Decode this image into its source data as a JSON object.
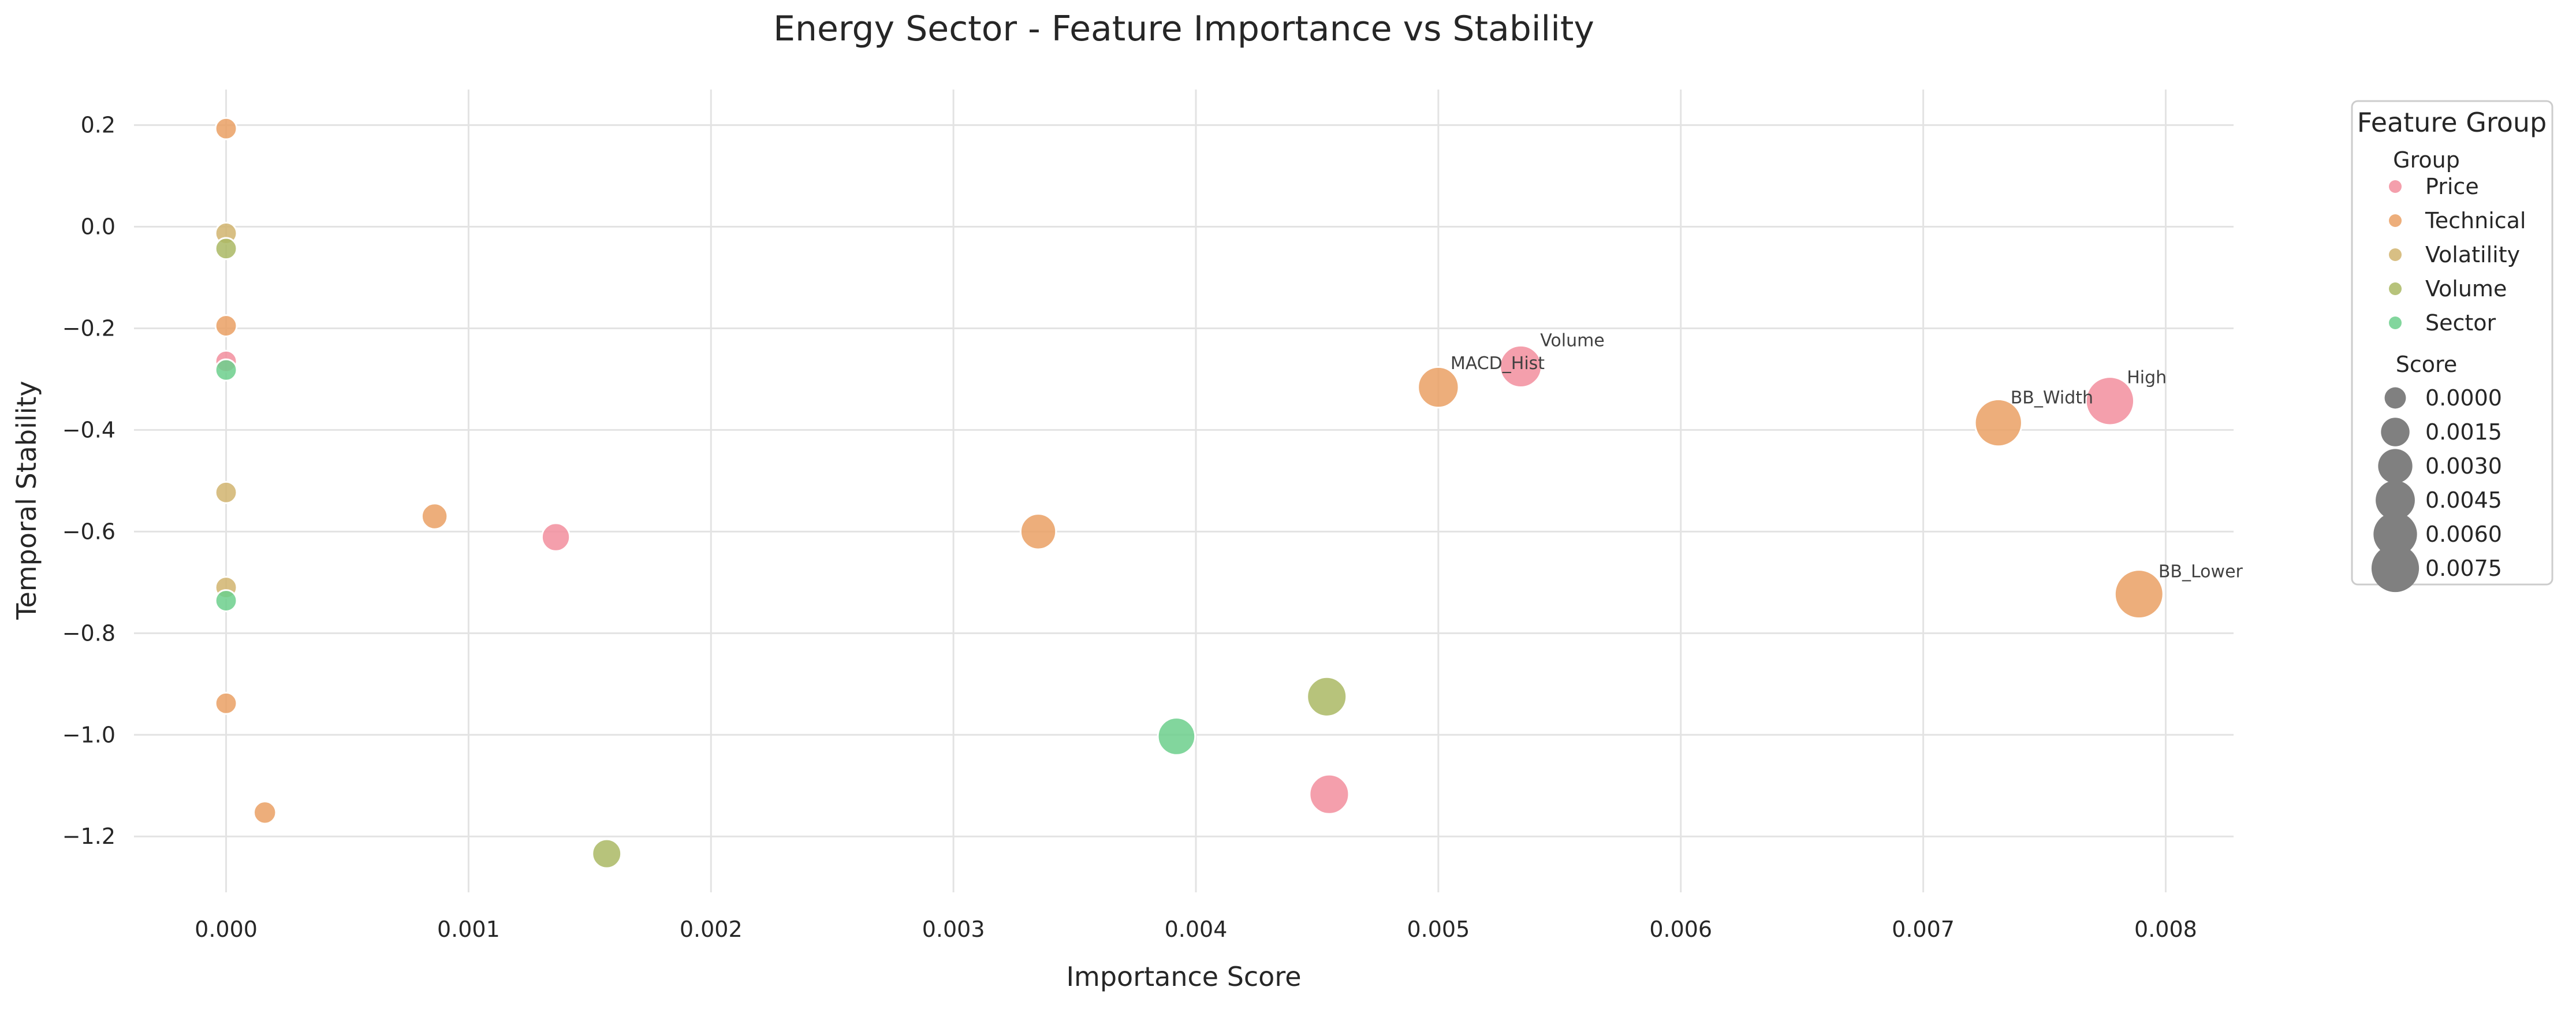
{
  "chart_data": {
    "type": "scatter",
    "title": "Energy Sector - Feature Importance vs Stability",
    "xlabel": "Importance Score",
    "ylabel": "Temporal Stability",
    "xlim": [
      -0.00038,
      0.00828
    ],
    "ylim": [
      -1.31,
      0.27
    ],
    "x_ticks": [
      0.0,
      0.001,
      0.002,
      0.003,
      0.004,
      0.005,
      0.006,
      0.007,
      0.008
    ],
    "x_tick_labels": [
      "0.000",
      "0.001",
      "0.002",
      "0.003",
      "0.004",
      "0.005",
      "0.006",
      "0.007",
      "0.008"
    ],
    "y_ticks": [
      0.2,
      0.0,
      -0.2,
      -0.4,
      -0.6,
      -0.8,
      -1.0,
      -1.2
    ],
    "y_tick_labels": [
      "0.2",
      "0.0",
      "−0.2",
      "−0.4",
      "−0.6",
      "−0.8",
      "−1.0",
      "−1.2"
    ],
    "grid": true,
    "legend_placement": "outside-right",
    "legend": {
      "title": "Feature Group",
      "group_heading": "Group",
      "size_heading": "Score",
      "groups": [
        {
          "name": "Price",
          "color": "#f28e9e"
        },
        {
          "name": "Technical",
          "color": "#eaa064"
        },
        {
          "name": "Volatility",
          "color": "#d1b46e"
        },
        {
          "name": "Volume",
          "color": "#aab964"
        },
        {
          "name": "Sector",
          "color": "#6ccf8c"
        }
      ],
      "size_values": [
        0.0,
        0.0015,
        0.003,
        0.0045,
        0.006,
        0.0075
      ],
      "size_labels": [
        "0.0000",
        "0.0015",
        "0.0030",
        "0.0045",
        "0.0060",
        "0.0075"
      ],
      "size_color": "#808080"
    },
    "points": [
      {
        "group": "Technical",
        "x": 0.0,
        "y": 0.193
      },
      {
        "group": "Volatility",
        "x": 0.0,
        "y": -0.013
      },
      {
        "group": "Volume",
        "x": 0.0,
        "y": -0.043
      },
      {
        "group": "Technical",
        "x": 0.0,
        "y": -0.195
      },
      {
        "group": "Price",
        "x": 0.0,
        "y": -0.265
      },
      {
        "group": "Sector",
        "x": 0.0,
        "y": -0.282
      },
      {
        "group": "Volatility",
        "x": 0.0,
        "y": -0.523
      },
      {
        "group": "Volatility",
        "x": 0.0,
        "y": -0.71
      },
      {
        "group": "Sector",
        "x": 0.0,
        "y": -0.736
      },
      {
        "group": "Technical",
        "x": 0.0,
        "y": -0.938
      },
      {
        "group": "Technical",
        "x": 0.00016,
        "y": -1.153
      },
      {
        "group": "Technical",
        "x": 0.00086,
        "y": -0.57
      },
      {
        "group": "Price",
        "x": 0.00136,
        "y": -0.611
      },
      {
        "group": "Volume",
        "x": 0.00157,
        "y": -1.234
      },
      {
        "group": "Technical",
        "x": 0.00335,
        "y": -0.6
      },
      {
        "group": "Sector",
        "x": 0.00392,
        "y": -1.003
      },
      {
        "group": "Volume",
        "x": 0.00454,
        "y": -0.925
      },
      {
        "group": "Price",
        "x": 0.00455,
        "y": -1.117
      },
      {
        "group": "Technical",
        "x": 0.005,
        "y": -0.316
      },
      {
        "group": "Price",
        "x": 0.00534,
        "y": -0.275,
        "label": "Volume"
      },
      {
        "group": "Technical",
        "x": 0.00731,
        "y": -0.386
      },
      {
        "group": "Price",
        "x": 0.00777,
        "y": -0.343,
        "label": "High"
      },
      {
        "group": "Technical",
        "x": 0.00789,
        "y": -0.723,
        "label": "BB_Lower"
      }
    ],
    "annotations": [
      {
        "text": "Volume",
        "x": 0.00542,
        "y": -0.235
      },
      {
        "text": "MACD_Hist",
        "x": 0.00505,
        "y": -0.28
      },
      {
        "text": "High",
        "x": 0.00784,
        "y": -0.308
      },
      {
        "text": "BB_Width",
        "x": 0.00736,
        "y": -0.348
      },
      {
        "text": "BB_Lower",
        "x": 0.00797,
        "y": -0.69
      }
    ]
  }
}
